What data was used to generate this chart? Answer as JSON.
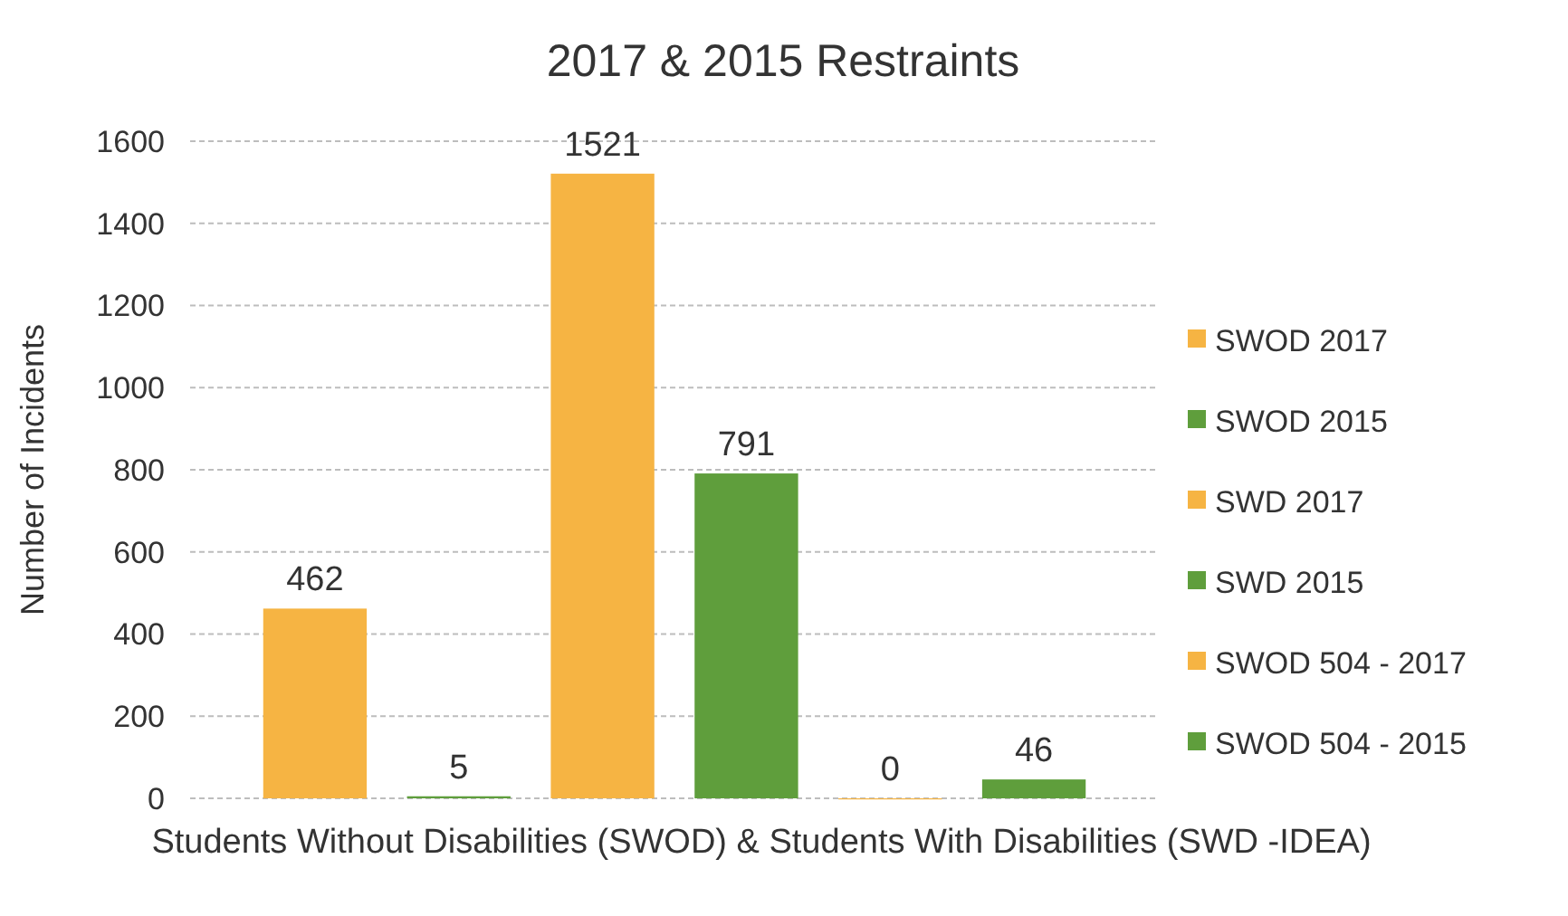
{
  "chart_data": {
    "type": "bar",
    "title": "2017 & 2015 Restraints",
    "xlabel": "Students Without Disabilities (SWOD) & Students With Disabilities (SWD -IDEA)",
    "ylabel": "Number of Incidents",
    "categories": [
      null
    ],
    "series": [
      {
        "name": "SWOD 2017",
        "color": "#f6b443",
        "values": [
          462
        ]
      },
      {
        "name": "SWOD 2015",
        "color": "#5f9e3c",
        "values": [
          5
        ]
      },
      {
        "name": "SWD 2017",
        "color": "#f6b443",
        "values": [
          1521
        ]
      },
      {
        "name": "SWD 2015",
        "color": "#5f9e3c",
        "values": [
          791
        ]
      },
      {
        "name": "SWOD 504 - 2017",
        "color": "#f6b443",
        "values": [
          0
        ]
      },
      {
        "name": "SWOD 504 - 2015",
        "color": "#5f9e3c",
        "values": [
          46
        ]
      }
    ],
    "ylim": [
      0,
      1600
    ],
    "yticks": [
      0,
      200,
      400,
      600,
      800,
      1000,
      1200,
      1400,
      1600
    ],
    "grid": "y",
    "legend": "right",
    "data_labels": true
  }
}
